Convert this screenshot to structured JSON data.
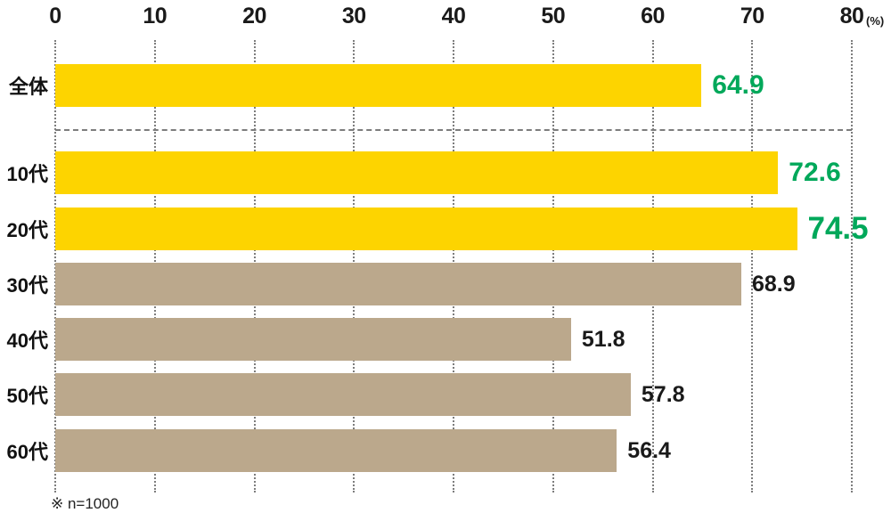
{
  "chart_data": {
    "type": "bar",
    "orientation": "horizontal",
    "title": "",
    "x_axis": {
      "range": [
        0,
        80
      ],
      "ticks": [
        0,
        10,
        20,
        30,
        40,
        50,
        60,
        70,
        80
      ],
      "unit": "(%)",
      "grid": true
    },
    "rows": [
      {
        "label": "全体",
        "value": 64.9,
        "highlight": true,
        "value_emphasis": "large"
      },
      {
        "label": "10代",
        "value": 72.6,
        "highlight": true,
        "value_emphasis": "large"
      },
      {
        "label": "20代",
        "value": 74.5,
        "highlight": true,
        "value_emphasis": "xlarge"
      },
      {
        "label": "30代",
        "value": 68.9,
        "highlight": false,
        "value_emphasis": "normal"
      },
      {
        "label": "40代",
        "value": 51.8,
        "highlight": false,
        "value_emphasis": "normal"
      },
      {
        "label": "50代",
        "value": 57.8,
        "highlight": false,
        "value_emphasis": "normal"
      },
      {
        "label": "60代",
        "value": 56.4,
        "highlight": false,
        "value_emphasis": "normal"
      }
    ],
    "separator_after_row": 0,
    "colors": {
      "highlight_bar": "#FDD400",
      "normal_bar": "#BBA88C",
      "highlight_value": "#00A85A",
      "normal_value": "#1A1A1A",
      "grid": "#7D7D7D"
    },
    "footnote": "※ n=1000"
  }
}
